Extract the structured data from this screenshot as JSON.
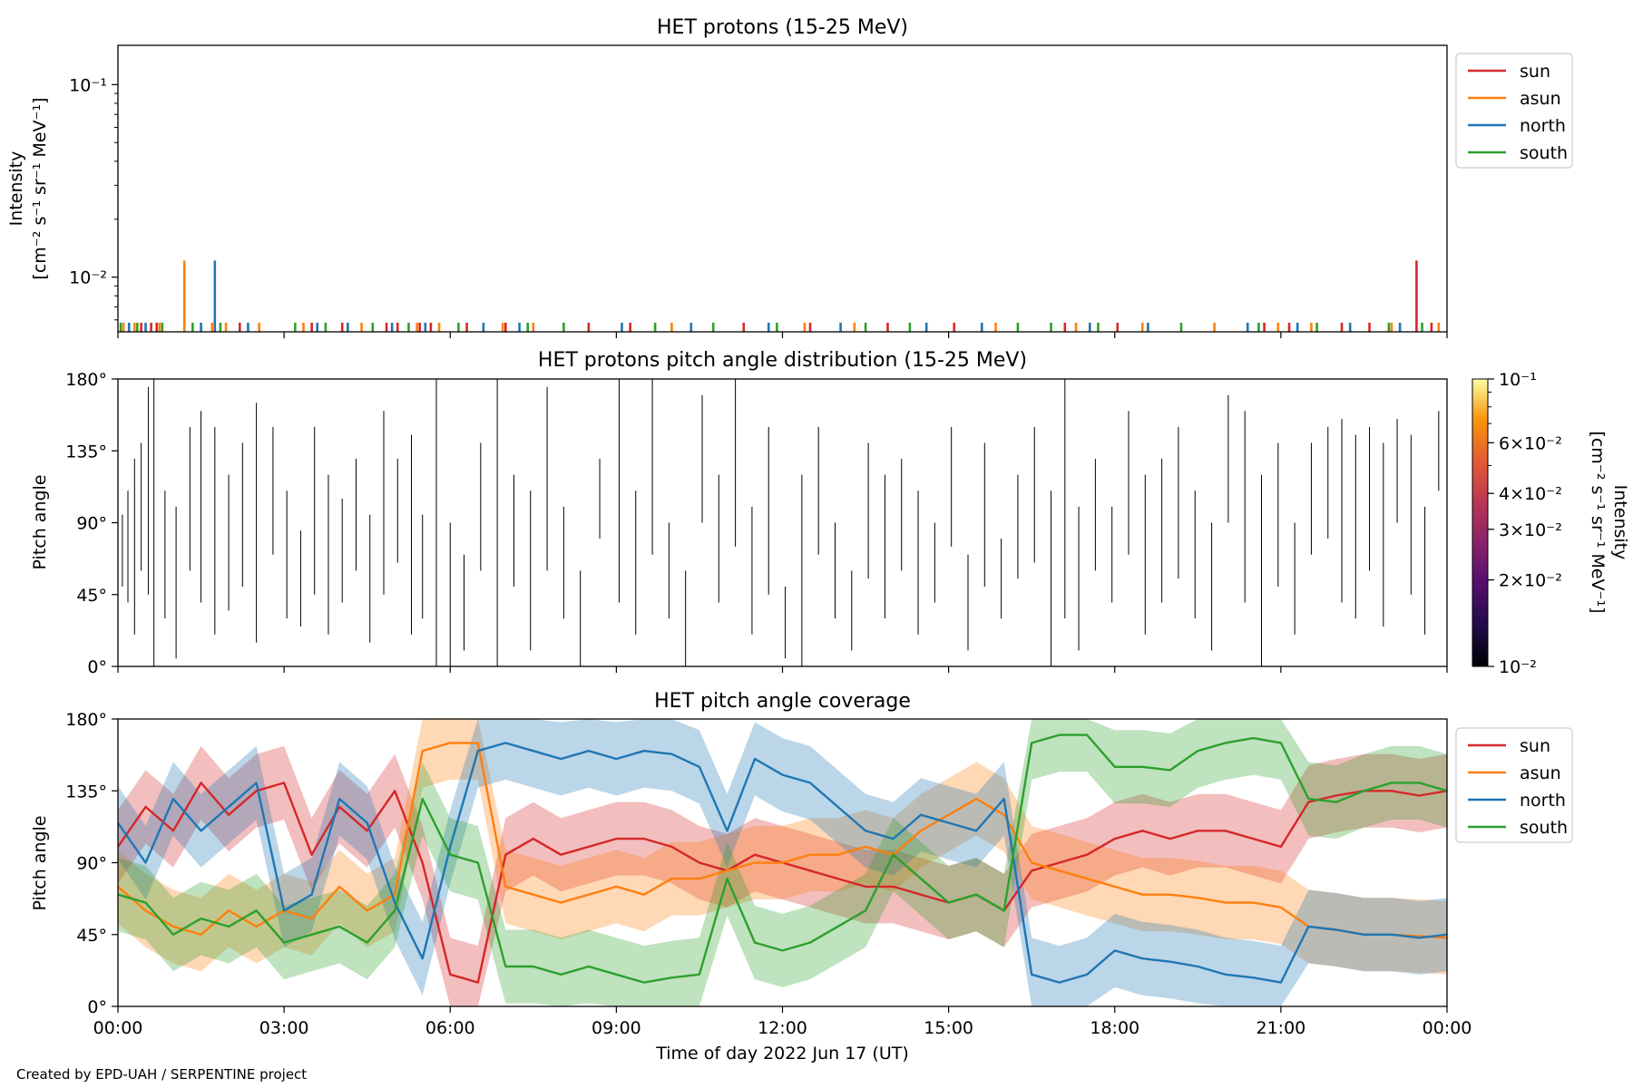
{
  "figure": {
    "credit": "Created by EPD-UAH / SERPENTINE project",
    "xlabel": "Time of day 2022 Jun 17 (UT)",
    "x_ticks": [
      "00:00",
      "03:00",
      "06:00",
      "09:00",
      "12:00",
      "15:00",
      "18:00",
      "21:00",
      "00:00"
    ],
    "colors": {
      "sun": "#d62728",
      "asun": "#ff7f0e",
      "north": "#1f77b4",
      "south": "#2ca02c"
    }
  },
  "chart_data": [
    {
      "type": "bar",
      "title": "HET protons (15-25 MeV)",
      "ylabel_line1": "Intensity",
      "ylabel_line2": "[cm⁻² s⁻¹ sr⁻¹ MeV⁻¹]",
      "yscale": "log",
      "ylim": [
        0.0052,
        0.16
      ],
      "y_ticks": [
        {
          "value": 0.1,
          "label": "10⁻¹"
        },
        {
          "value": 0.01,
          "label": "10⁻²"
        }
      ],
      "xlim_hours": [
        0,
        24
      ],
      "baseline": 0.0057,
      "legend": [
        "sun",
        "asun",
        "north",
        "south"
      ],
      "legend_position": "outside-right",
      "series": [
        {
          "name": "sun",
          "x_hours": [
            0.42,
            0.6,
            0.7,
            2.2,
            3.5,
            4.05,
            4.85,
            5.05,
            5.45,
            5.65,
            6.3,
            7.0,
            8.5,
            9.25,
            11.3,
            12.5,
            13.9,
            15.1,
            17.1,
            18.05,
            20.7,
            21.15,
            22.1,
            22.6,
            23.45,
            23.72
          ],
          "values": [
            0.0058,
            0.0058,
            0.0058,
            0.0058,
            0.0058,
            0.0058,
            0.0058,
            0.0058,
            0.0058,
            0.0058,
            0.0058,
            0.0058,
            0.0058,
            0.0058,
            0.0058,
            0.0058,
            0.0058,
            0.0058,
            0.0058,
            0.0058,
            0.0058,
            0.0058,
            0.0058,
            0.0058,
            0.0122,
            0.0058
          ]
        },
        {
          "name": "asun",
          "x_hours": [
            0.1,
            0.3,
            0.75,
            1.2,
            1.7,
            1.95,
            2.55,
            3.35,
            4.4,
            5.4,
            5.8,
            6.95,
            7.5,
            10.0,
            12.4,
            13.3,
            15.85,
            17.3,
            18.5,
            19.8,
            20.95,
            21.55,
            23.0,
            23.85
          ],
          "values": [
            0.0058,
            0.0058,
            0.0058,
            0.0122,
            0.0058,
            0.0058,
            0.0058,
            0.0058,
            0.0058,
            0.0058,
            0.0058,
            0.0058,
            0.0058,
            0.0058,
            0.0058,
            0.0058,
            0.0058,
            0.0058,
            0.0058,
            0.0058,
            0.0058,
            0.0058,
            0.0058,
            0.0058
          ]
        },
        {
          "name": "north",
          "x_hours": [
            0.2,
            0.5,
            1.5,
            1.75,
            2.35,
            3.6,
            4.15,
            4.95,
            5.55,
            6.6,
            7.25,
            9.1,
            10.35,
            11.75,
            13.05,
            14.6,
            15.6,
            17.55,
            18.6,
            20.4,
            21.3,
            22.25,
            23.15
          ],
          "values": [
            0.0058,
            0.0058,
            0.0058,
            0.0122,
            0.0058,
            0.0058,
            0.0058,
            0.0058,
            0.0058,
            0.0058,
            0.0058,
            0.0058,
            0.0058,
            0.0058,
            0.0058,
            0.0058,
            0.0058,
            0.0058,
            0.0058,
            0.0058,
            0.0058,
            0.0058,
            0.0058
          ]
        },
        {
          "name": "south",
          "x_hours": [
            0.05,
            0.35,
            0.8,
            1.35,
            1.85,
            3.2,
            3.75,
            4.6,
            5.25,
            6.15,
            7.4,
            8.05,
            9.7,
            10.75,
            11.9,
            13.5,
            14.3,
            16.25,
            16.85,
            17.7,
            19.2,
            20.6,
            21.65,
            22.95,
            23.55
          ],
          "values": [
            0.0058,
            0.0058,
            0.0058,
            0.0058,
            0.0058,
            0.0058,
            0.0058,
            0.0058,
            0.0058,
            0.0058,
            0.0058,
            0.0058,
            0.0058,
            0.0058,
            0.0058,
            0.0058,
            0.0058,
            0.0058,
            0.0058,
            0.0058,
            0.0058,
            0.0058,
            0.0058,
            0.0058,
            0.0058
          ]
        }
      ]
    },
    {
      "type": "heatmap",
      "title": "HET protons pitch angle distribution (15-25 MeV)",
      "ylabel": "Pitch angle",
      "ylim": [
        0,
        180
      ],
      "y_ticks": [
        "0°",
        "45°",
        "90°",
        "135°",
        "180°"
      ],
      "xlim_hours": [
        0,
        24
      ],
      "colorbar": {
        "label_line1": "Intensity",
        "label_line2": "[cm⁻² s⁻¹ sr⁻¹ MeV⁻¹]",
        "scale": "log",
        "range": [
          0.01,
          0.1
        ],
        "colormap": "inferno",
        "ticks": [
          {
            "value": 0.1,
            "label": "10⁻¹"
          },
          {
            "value": 0.06,
            "label": "6×10⁻²"
          },
          {
            "value": 0.04,
            "label": "4×10⁻²"
          },
          {
            "value": 0.03,
            "label": "3×10⁻²"
          },
          {
            "value": 0.02,
            "label": "2×10⁻²"
          },
          {
            "value": 0.01,
            "label": "10⁻²"
          }
        ]
      },
      "cells": [
        {
          "t": 0.08,
          "lo": 50,
          "hi": 95
        },
        {
          "t": 0.18,
          "lo": 40,
          "hi": 110
        },
        {
          "t": 0.3,
          "lo": 20,
          "hi": 130
        },
        {
          "t": 0.42,
          "lo": 60,
          "hi": 140
        },
        {
          "t": 0.55,
          "lo": 45,
          "hi": 175
        },
        {
          "t": 0.65,
          "lo": 0,
          "hi": 180
        },
        {
          "t": 0.85,
          "lo": 30,
          "hi": 110
        },
        {
          "t": 1.05,
          "lo": 5,
          "hi": 100
        },
        {
          "t": 1.3,
          "lo": 60,
          "hi": 150
        },
        {
          "t": 1.5,
          "lo": 40,
          "hi": 160
        },
        {
          "t": 1.75,
          "lo": 20,
          "hi": 150
        },
        {
          "t": 2.0,
          "lo": 35,
          "hi": 120
        },
        {
          "t": 2.25,
          "lo": 50,
          "hi": 140
        },
        {
          "t": 2.5,
          "lo": 15,
          "hi": 165
        },
        {
          "t": 2.8,
          "lo": 70,
          "hi": 150
        },
        {
          "t": 3.05,
          "lo": 30,
          "hi": 110
        },
        {
          "t": 3.3,
          "lo": 25,
          "hi": 85
        },
        {
          "t": 3.55,
          "lo": 45,
          "hi": 150
        },
        {
          "t": 3.8,
          "lo": 20,
          "hi": 120
        },
        {
          "t": 4.05,
          "lo": 40,
          "hi": 105
        },
        {
          "t": 4.3,
          "lo": 60,
          "hi": 130
        },
        {
          "t": 4.55,
          "lo": 15,
          "hi": 95
        },
        {
          "t": 4.8,
          "lo": 45,
          "hi": 160
        },
        {
          "t": 5.05,
          "lo": 65,
          "hi": 130
        },
        {
          "t": 5.3,
          "lo": 20,
          "hi": 145
        },
        {
          "t": 5.5,
          "lo": 30,
          "hi": 95
        },
        {
          "t": 5.75,
          "lo": 0,
          "hi": 180
        },
        {
          "t": 6.0,
          "lo": 0,
          "hi": 90
        },
        {
          "t": 6.25,
          "lo": 10,
          "hi": 70
        },
        {
          "t": 6.55,
          "lo": 60,
          "hi": 140
        },
        {
          "t": 6.85,
          "lo": 0,
          "hi": 180
        },
        {
          "t": 7.15,
          "lo": 50,
          "hi": 120
        },
        {
          "t": 7.45,
          "lo": 10,
          "hi": 110
        },
        {
          "t": 7.75,
          "lo": 60,
          "hi": 175
        },
        {
          "t": 8.05,
          "lo": 30,
          "hi": 100
        },
        {
          "t": 8.35,
          "lo": 0,
          "hi": 60
        },
        {
          "t": 8.7,
          "lo": 80,
          "hi": 130
        },
        {
          "t": 9.05,
          "lo": 40,
          "hi": 180
        },
        {
          "t": 9.35,
          "lo": 20,
          "hi": 110
        },
        {
          "t": 9.65,
          "lo": 70,
          "hi": 180
        },
        {
          "t": 9.95,
          "lo": 30,
          "hi": 90
        },
        {
          "t": 10.25,
          "lo": 0,
          "hi": 60
        },
        {
          "t": 10.55,
          "lo": 90,
          "hi": 170
        },
        {
          "t": 10.85,
          "lo": 40,
          "hi": 120
        },
        {
          "t": 11.15,
          "lo": 75,
          "hi": 180
        },
        {
          "t": 11.45,
          "lo": 20,
          "hi": 100
        },
        {
          "t": 11.75,
          "lo": 45,
          "hi": 150
        },
        {
          "t": 12.05,
          "lo": 5,
          "hi": 50
        },
        {
          "t": 12.35,
          "lo": 0,
          "hi": 120
        },
        {
          "t": 12.65,
          "lo": 70,
          "hi": 150
        },
        {
          "t": 12.95,
          "lo": 30,
          "hi": 90
        },
        {
          "t": 13.25,
          "lo": 10,
          "hi": 60
        },
        {
          "t": 13.55,
          "lo": 55,
          "hi": 140
        },
        {
          "t": 13.85,
          "lo": 30,
          "hi": 120
        },
        {
          "t": 14.15,
          "lo": 60,
          "hi": 130
        },
        {
          "t": 14.45,
          "lo": 20,
          "hi": 110
        },
        {
          "t": 14.75,
          "lo": 40,
          "hi": 90
        },
        {
          "t": 15.05,
          "lo": 75,
          "hi": 150
        },
        {
          "t": 15.35,
          "lo": 10,
          "hi": 70
        },
        {
          "t": 15.65,
          "lo": 50,
          "hi": 140
        },
        {
          "t": 15.95,
          "lo": 30,
          "hi": 80
        },
        {
          "t": 16.25,
          "lo": 55,
          "hi": 120
        },
        {
          "t": 16.55,
          "lo": 65,
          "hi": 150
        },
        {
          "t": 16.85,
          "lo": 0,
          "hi": 110
        },
        {
          "t": 17.1,
          "lo": 30,
          "hi": 180
        },
        {
          "t": 17.35,
          "lo": 10,
          "hi": 100
        },
        {
          "t": 17.65,
          "lo": 60,
          "hi": 130
        },
        {
          "t": 17.95,
          "lo": 40,
          "hi": 100
        },
        {
          "t": 18.25,
          "lo": 70,
          "hi": 160
        },
        {
          "t": 18.55,
          "lo": 20,
          "hi": 120
        },
        {
          "t": 18.85,
          "lo": 40,
          "hi": 130
        },
        {
          "t": 19.15,
          "lo": 55,
          "hi": 150
        },
        {
          "t": 19.45,
          "lo": 30,
          "hi": 110
        },
        {
          "t": 19.75,
          "lo": 10,
          "hi": 90
        },
        {
          "t": 20.05,
          "lo": 90,
          "hi": 170
        },
        {
          "t": 20.35,
          "lo": 40,
          "hi": 160
        },
        {
          "t": 20.65,
          "lo": 0,
          "hi": 120
        },
        {
          "t": 20.95,
          "lo": 50,
          "hi": 140
        },
        {
          "t": 21.25,
          "lo": 20,
          "hi": 90
        },
        {
          "t": 21.55,
          "lo": 70,
          "hi": 140
        },
        {
          "t": 21.85,
          "lo": 80,
          "hi": 150
        },
        {
          "t": 22.1,
          "lo": 40,
          "hi": 155
        },
        {
          "t": 22.35,
          "lo": 30,
          "hi": 145
        },
        {
          "t": 22.6,
          "lo": 60,
          "hi": 150
        },
        {
          "t": 22.85,
          "lo": 25,
          "hi": 140
        },
        {
          "t": 23.1,
          "lo": 90,
          "hi": 155
        },
        {
          "t": 23.35,
          "lo": 45,
          "hi": 145
        },
        {
          "t": 23.6,
          "lo": 20,
          "hi": 100
        },
        {
          "t": 23.85,
          "lo": 110,
          "hi": 160
        }
      ]
    },
    {
      "type": "area",
      "title": "HET pitch angle coverage",
      "ylabel": "Pitch angle",
      "ylim": [
        0,
        180
      ],
      "y_ticks": [
        "0°",
        "45°",
        "90°",
        "135°",
        "180°"
      ],
      "xlim_hours": [
        0,
        24
      ],
      "legend": [
        "sun",
        "asun",
        "north",
        "south"
      ],
      "legend_position": "outside-right",
      "x_hours": [
        0,
        0.5,
        1,
        1.5,
        2,
        2.5,
        3,
        3.5,
        4,
        4.5,
        5,
        5.5,
        6,
        6.5,
        7,
        7.5,
        8,
        8.5,
        9,
        9.5,
        10,
        10.5,
        11,
        11.5,
        12,
        12.5,
        13,
        13.5,
        14,
        14.5,
        15,
        15.5,
        16,
        16.5,
        17,
        17.5,
        18,
        18.5,
        19,
        19.5,
        20,
        20.5,
        21,
        21.5,
        22,
        22.5,
        23,
        23.5,
        24
      ],
      "half_width_deg": 23,
      "series": [
        {
          "name": "sun",
          "values": [
            100,
            125,
            110,
            140,
            120,
            135,
            140,
            95,
            125,
            110,
            135,
            90,
            20,
            15,
            95,
            105,
            95,
            100,
            105,
            105,
            100,
            90,
            85,
            95,
            90,
            85,
            80,
            75,
            75,
            70,
            65,
            70,
            60,
            85,
            90,
            95,
            105,
            110,
            105,
            110,
            110,
            105,
            100,
            128,
            132,
            135,
            135,
            132,
            135
          ]
        },
        {
          "name": "asun",
          "values": [
            75,
            60,
            50,
            45,
            60,
            50,
            60,
            55,
            75,
            60,
            70,
            160,
            165,
            165,
            75,
            70,
            65,
            70,
            75,
            70,
            80,
            80,
            85,
            90,
            90,
            95,
            95,
            100,
            95,
            110,
            120,
            130,
            120,
            90,
            85,
            80,
            75,
            70,
            70,
            68,
            65,
            65,
            62,
            50,
            48,
            45,
            45,
            44,
            43
          ]
        },
        {
          "name": "north",
          "values": [
            115,
            90,
            130,
            110,
            125,
            140,
            60,
            70,
            130,
            115,
            65,
            30,
            100,
            160,
            165,
            160,
            155,
            160,
            155,
            160,
            158,
            150,
            110,
            155,
            145,
            140,
            125,
            110,
            105,
            120,
            115,
            110,
            130,
            20,
            15,
            20,
            35,
            30,
            28,
            25,
            20,
            18,
            15,
            50,
            48,
            45,
            45,
            43,
            45
          ]
        },
        {
          "name": "south",
          "values": [
            70,
            65,
            45,
            55,
            50,
            60,
            40,
            45,
            50,
            40,
            60,
            130,
            95,
            90,
            25,
            25,
            20,
            25,
            20,
            15,
            18,
            20,
            80,
            40,
            35,
            40,
            50,
            60,
            95,
            80,
            65,
            70,
            60,
            165,
            170,
            170,
            150,
            150,
            148,
            160,
            165,
            168,
            165,
            130,
            128,
            135,
            140,
            140,
            135
          ]
        }
      ]
    }
  ]
}
